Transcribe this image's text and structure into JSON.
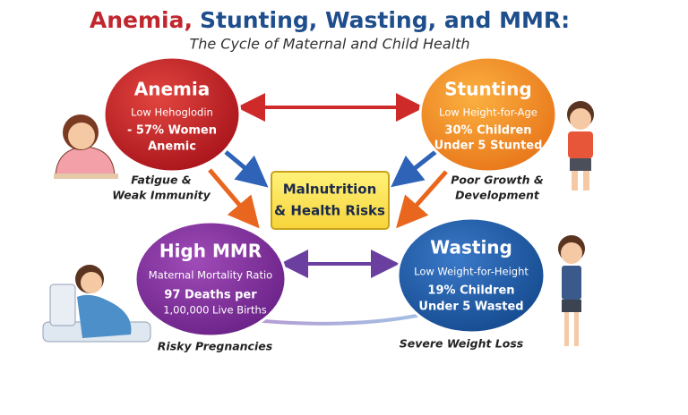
{
  "header": {
    "title_parts": [
      "Anemia,",
      "Stunting, Wasting, and MMR:"
    ],
    "subtitle": "The Cycle of Maternal and Child Health"
  },
  "nodes": [
    {
      "title": "Anemia",
      "lines": [
        "Low Hehoglodin",
        "- 57% Women",
        "Anemic"
      ],
      "caption": [
        "Fatigue &",
        "Weak Immunity"
      ]
    },
    {
      "title": "Stunting",
      "lines": [
        "Low Height-for-Age",
        "30% Children",
        "Under 5 Stunted"
      ],
      "caption": [
        "Poor Growth &",
        "Development"
      ]
    },
    {
      "title": "High MMR",
      "lines": [
        "Maternal Mortality Ratio",
        "97 Deaths per",
        "1,00,000 Live Births"
      ],
      "caption": [
        "Risky Pregnancies"
      ]
    },
    {
      "title": "Wasting",
      "lines": [
        "Low Weight-for-Height",
        "19% Children",
        "Under 5 Wasted"
      ],
      "caption": [
        "Severe Weight Loss"
      ]
    }
  ],
  "center": {
    "lines": [
      "Malnutrition",
      "& Health Risks"
    ]
  }
}
